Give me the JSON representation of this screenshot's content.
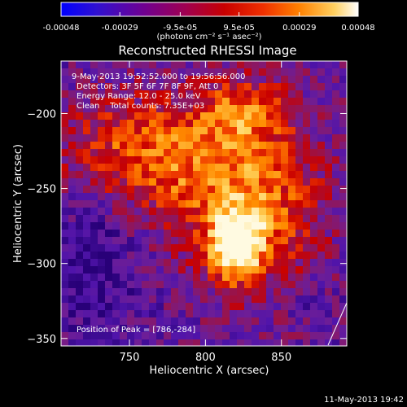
{
  "colorbar": {
    "tick_labels": [
      "-0.00048",
      "-0.00029",
      "-9.5e-05",
      "9.5e-05",
      "0.00029",
      "0.00048"
    ],
    "tick_values": [
      -0.00048,
      -0.00029,
      -9.5e-05,
      9.5e-05,
      0.00029,
      0.00048
    ],
    "range": [
      -0.00048,
      0.00048
    ],
    "units_label": "(photons cm⁻² s⁻¹ asec⁻²)",
    "colors": [
      "#0000ff",
      "#5000c0",
      "#800090",
      "#a00050",
      "#c00000",
      "#e03000",
      "#ff8000",
      "#ffc040",
      "#ffffff"
    ]
  },
  "chart_data": {
    "type": "heatmap",
    "title": "Reconstructed RHESSI Image",
    "xlabel": "Heliocentric X (arcsec)",
    "ylabel": "Heliocentric Y (arcsec)",
    "xlim": [
      705,
      893
    ],
    "ylim": [
      -355,
      -165
    ],
    "xticks": [
      750,
      800,
      850
    ],
    "yticks": [
      -200,
      -250,
      -300,
      -350
    ],
    "grid": false,
    "peak": {
      "x": 786,
      "y": -284
    },
    "annotations": {
      "time_range": "9-May-2013 19:52:52.000 to 19:56:56.000",
      "detectors": "Detectors: 3F 5F 6F 7F 8F 9F, Att 0",
      "energy": "Energy Range: 12.0 - 25.0 keV",
      "clean": "Clean    Total counts: 7.35E+03",
      "peak_text": "Position of Peak = [786,-284]"
    }
  },
  "footer": {
    "date": "11-May-2013 19:42"
  }
}
